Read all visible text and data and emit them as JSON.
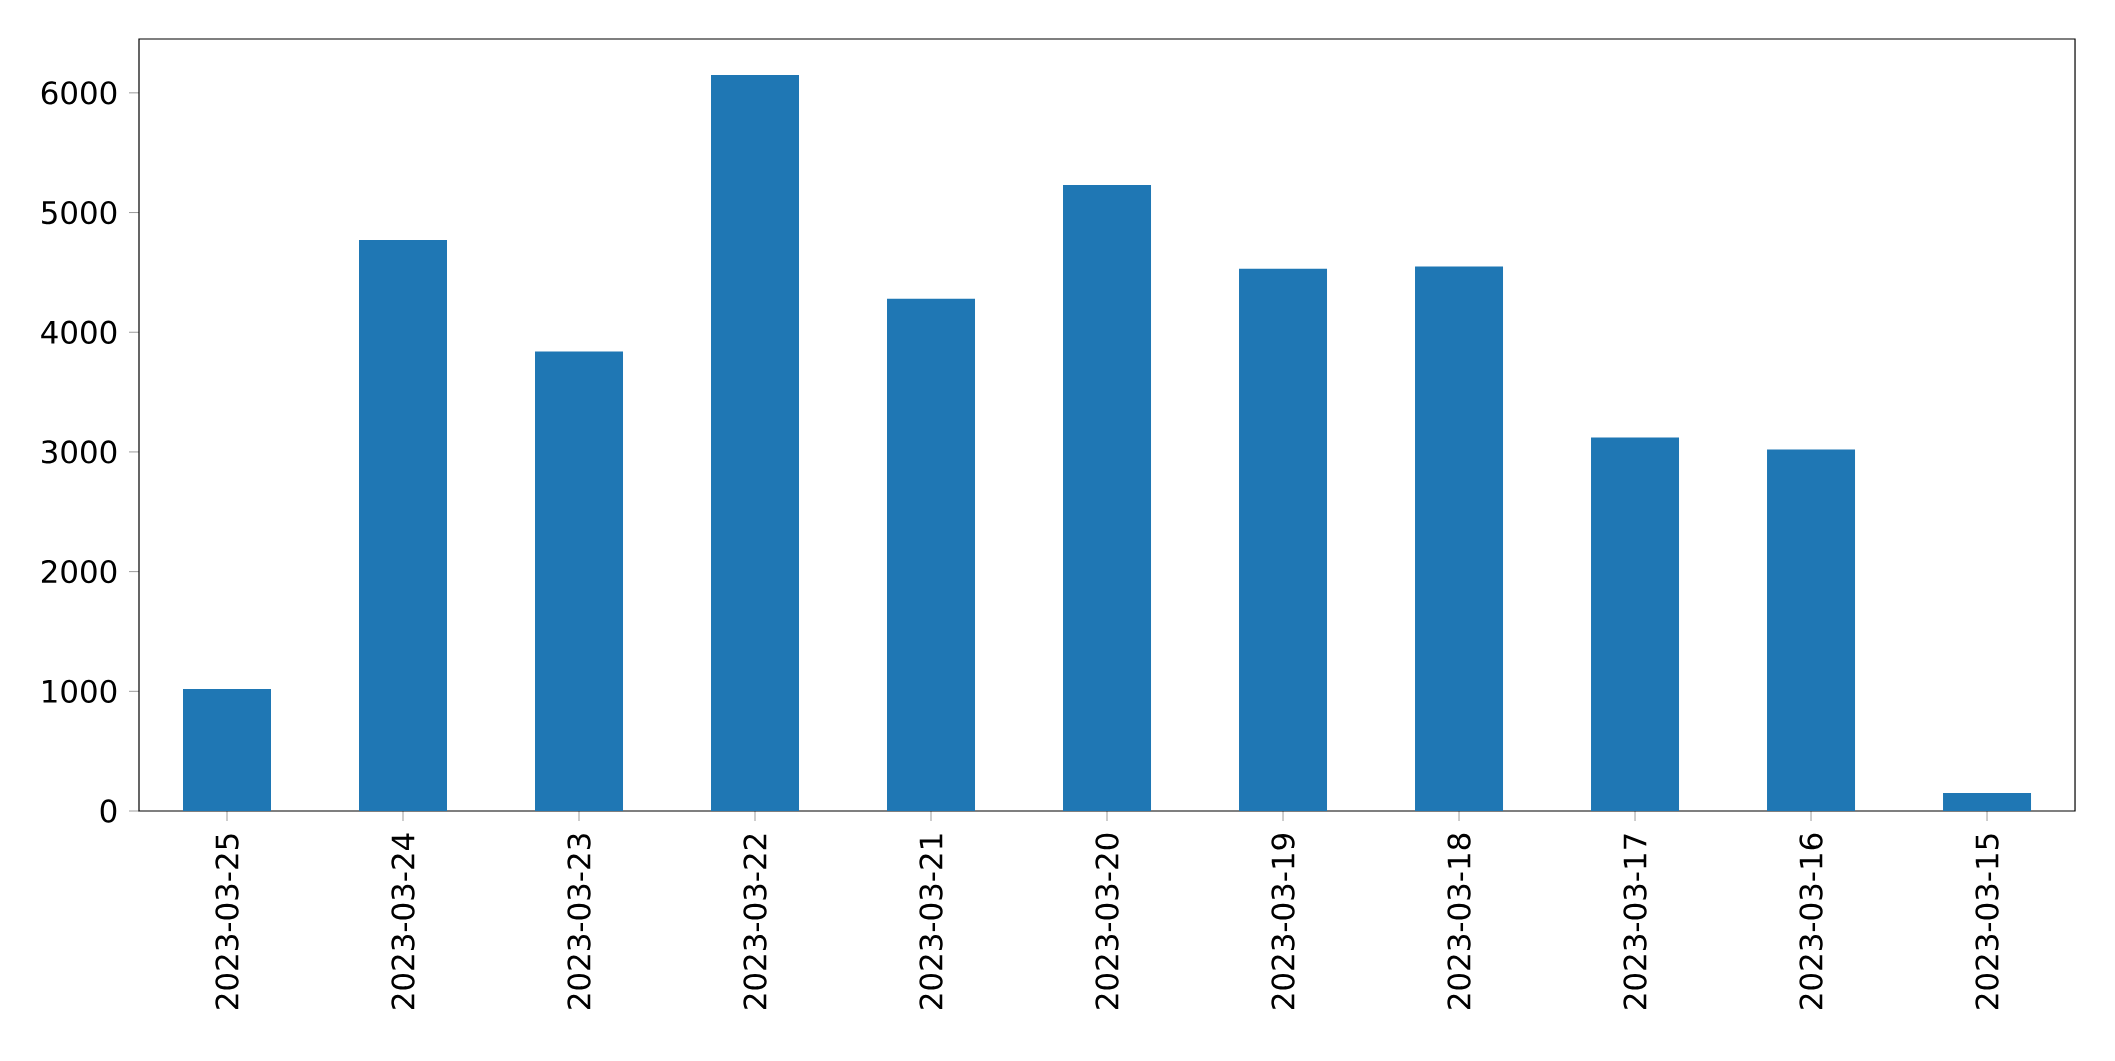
{
  "chart_data": {
    "type": "bar",
    "categories": [
      "2023-03-25",
      "2023-03-24",
      "2023-03-23",
      "2023-03-22",
      "2023-03-21",
      "2023-03-20",
      "2023-03-19",
      "2023-03-18",
      "2023-03-17",
      "2023-03-16",
      "2023-03-15"
    ],
    "values": [
      1020,
      4770,
      3840,
      6150,
      4280,
      5230,
      4530,
      4550,
      3120,
      3020,
      150
    ],
    "color": "#1f77b4",
    "ylim": [
      0,
      6450
    ],
    "yticks": [
      0,
      1000,
      2000,
      3000,
      4000,
      5000,
      6000
    ],
    "grid": false
  }
}
